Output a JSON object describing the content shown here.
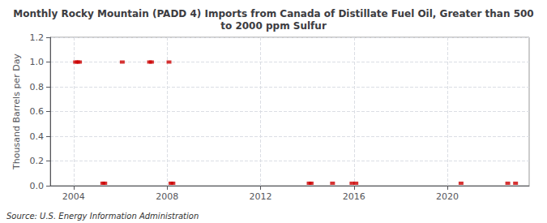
{
  "chart_data": {
    "type": "scatter",
    "title": "Monthly Rocky Mountain (PADD 4) Imports from Canada of Distillate Fuel Oil, Greater than 500\nto 2000 ppm Sulfur",
    "ylabel": "Thousand Barrels per Day",
    "source": "Source: U.S. Energy Information Administration",
    "marker": "dash",
    "color": "#cc0000",
    "grid": true,
    "xlim": [
      2003.0,
      2023.5
    ],
    "xticks": [
      2004,
      2008,
      2012,
      2016,
      2020
    ],
    "ylim": [
      0,
      1.2
    ],
    "yticks": [
      {
        "value": 0.0,
        "label": "0.0"
      },
      0.2,
      0.4,
      0.6,
      0.8,
      {
        "value": 1.0,
        "label": "1.0"
      },
      1.2
    ],
    "x": [
      2004.083,
      2004.167,
      2004.25,
      2005.25,
      2005.333,
      2006.083,
      2007.25,
      2007.333,
      2008.083,
      2008.167,
      2008.25,
      2014.083,
      2014.167,
      2015.083,
      2015.917,
      2016.083,
      2020.583,
      2022.583,
      2022.917
    ],
    "values": [
      1.0,
      1.0,
      1.0,
      0.02,
      0.02,
      1.0,
      1.0,
      1.0,
      1.0,
      0.02,
      0.02,
      0.02,
      0.02,
      0.02,
      0.02,
      0.02,
      0.02,
      0.02,
      0.02
    ]
  }
}
